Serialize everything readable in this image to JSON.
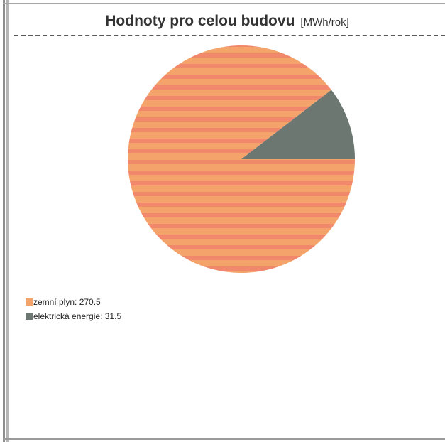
{
  "chart_data": {
    "type": "pie",
    "title": "Hodnoty pro celou budovu",
    "unit": "[MWh/rok]",
    "slices": [
      {
        "label": "zemní plyn",
        "value": 270.5,
        "color": "#f4a36a",
        "stripe_color": "#f1876b"
      },
      {
        "label": "elektrická energie",
        "value": 31.5,
        "color": "#6b7770"
      }
    ],
    "legend_position": "bottom-left"
  }
}
